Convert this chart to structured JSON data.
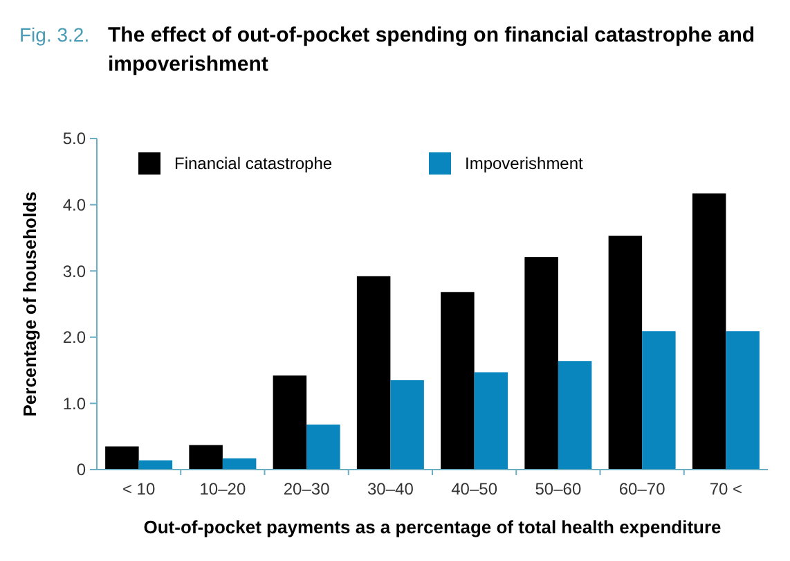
{
  "chart_data": {
    "type": "bar",
    "title": "The effect of out-of-pocket spending on financial catastrophe and impoverishment",
    "annotations": [
      "Fig. 3.2."
    ],
    "xlabel": "Out-of-pocket payments as a percentage of total health expenditure",
    "ylabel": "Percentage of households",
    "categories": [
      "< 10",
      "10–20",
      "20–30",
      "30–40",
      "40–50",
      "50–60",
      "60–70",
      "70 <"
    ],
    "series": [
      {
        "name": "Financial catastrophe",
        "color": "#000000",
        "values": [
          0.35,
          0.37,
          1.42,
          2.92,
          2.68,
          3.21,
          3.53,
          4.17
        ]
      },
      {
        "name": "Impoverishment",
        "color": "#0a86bf",
        "values": [
          0.14,
          0.17,
          0.68,
          1.35,
          1.47,
          1.64,
          2.09,
          2.09
        ]
      }
    ],
    "ylim": [
      0,
      5
    ],
    "yticks": [
      {
        "value": 0,
        "label": "0"
      },
      {
        "value": 1,
        "label": "1.0"
      },
      {
        "value": 2,
        "label": "2.0"
      },
      {
        "value": 3,
        "label": "3.0"
      },
      {
        "value": 4,
        "label": "4.0"
      },
      {
        "value": 5,
        "label": "5.0"
      }
    ],
    "grid": false,
    "legend": "top"
  }
}
